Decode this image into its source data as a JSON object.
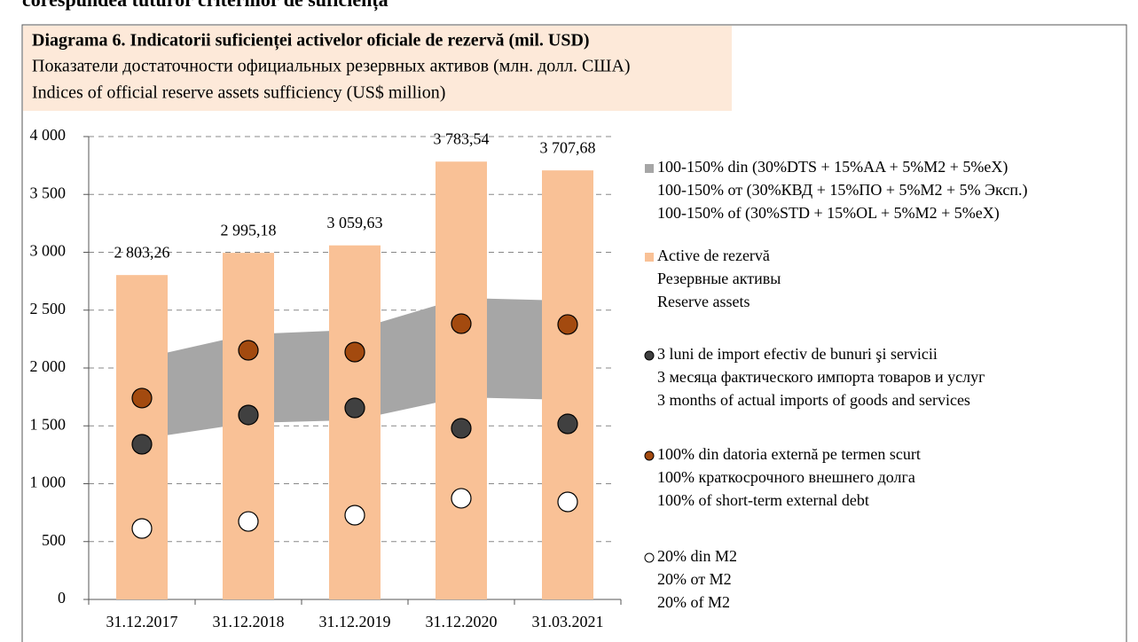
{
  "heading": "corespundea tuturor criteriilor de suficiență",
  "chart_data": {
    "type": "combo",
    "title": "Diagrama 6. Indicatorii suficienței activelor oficiale de rezervă (mil. USD)",
    "subtitle": "Показатели достаточности официальных резервных активов (млн. долл. США)",
    "subtitle_en": "Indices of official reserve assets sufficiency (US$ million)",
    "categories": [
      "31.12.2017",
      "31.12.2018",
      "31.12.2019",
      "31.12.2020",
      "31.03.2021"
    ],
    "ylim": [
      0,
      4000
    ],
    "yticks": [
      0,
      500,
      {
        "value": 1000,
        "label": "1 000"
      },
      {
        "value": 1500,
        "label": "1 500"
      },
      {
        "value": 2000,
        "label": "2 000"
      },
      {
        "value": 2500,
        "label": "2 500"
      },
      {
        "value": 3000,
        "label": "3 000"
      },
      {
        "value": 3500,
        "label": "3 500"
      },
      {
        "value": 4000,
        "label": "4 000"
      }
    ],
    "grid": true,
    "series": [
      {
        "type": "range",
        "name": "100-150% din (30%DTS + 15%AA + 5%M2 + 5%eX)",
        "labels": [
          "100-150% от (30%КВД  + 15%ПО + 5%M2 + 5% Эксп.)",
          "100-150% of (30%STD + 15%OL + 5%M2 + 5%eX)"
        ],
        "color": "#a6a6a6",
        "lower": [
          1387,
          1525,
          1550,
          1747,
          1724
        ],
        "upper": [
          2084,
          2291,
          2330,
          2605,
          2582
        ]
      },
      {
        "type": "bar",
        "name": "Active de rezervă",
        "labels": [
          "Резервные активы",
          "Reserve assets"
        ],
        "color": "#f9c196",
        "values": [
          2803.26,
          2995.18,
          3059.63,
          3783.54,
          3707.68
        ],
        "value_labels": [
          "2 803,26",
          "2 995,18",
          "3 059,63",
          "3 783,54",
          "3 707,68"
        ]
      },
      {
        "type": "marker",
        "name": "3 luni de import efectiv de bunuri şi servicii",
        "labels": [
          "3 месяца фактического импорта товаров и услуг",
          "3 months of actual imports of goods and services"
        ],
        "color": "#404040",
        "values": [
          1341,
          1594,
          1655,
          1479,
          1517
        ]
      },
      {
        "type": "marker",
        "name": "100% din datoria externă pe termen scurt",
        "labels": [
          "100% краткосрочного внешнего долга",
          "100% of short-term external debt"
        ],
        "color": "#a34a0f",
        "values": [
          1740,
          2153,
          2138,
          2383,
          2376
        ]
      },
      {
        "type": "marker",
        "name": "20% din M2",
        "labels": [
          "20% от M2",
          "20% of M2"
        ],
        "color": "#ffffff",
        "values": [
          613,
          674,
          728,
          874,
          843
        ]
      }
    ]
  }
}
